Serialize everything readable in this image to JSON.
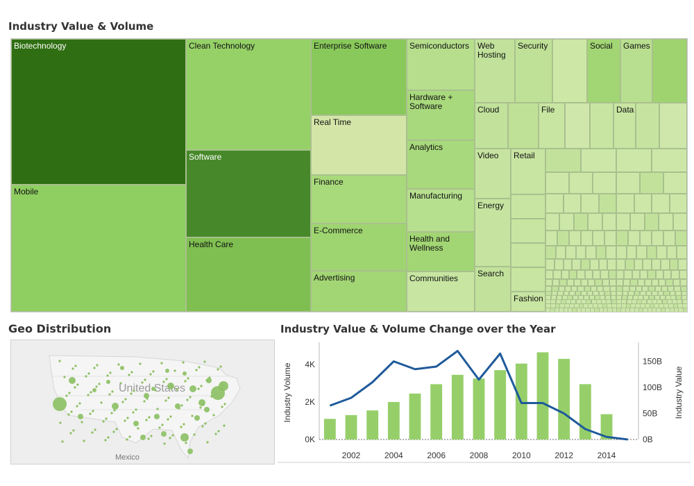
{
  "treemap": {
    "title": "Industry Value & Volume",
    "cells": [
      {
        "label": "Biotechnology",
        "c": "#2f6e12"
      },
      {
        "label": "Mobile",
        "c": "#8fcf61"
      },
      {
        "label": "Clean Technology",
        "c": "#95d167"
      },
      {
        "label": "Software",
        "c": "#47892a"
      },
      {
        "label": "Health Care",
        "c": "#7fbf51"
      },
      {
        "label": "Enterprise Software",
        "c": "#89c95b"
      },
      {
        "label": "Real Time",
        "c": "#d3e6a8"
      },
      {
        "label": "Finance",
        "c": "#a8d97a"
      },
      {
        "label": "E-Commerce",
        "c": "#9fd570"
      },
      {
        "label": "Advertising",
        "c": "#a2d674"
      },
      {
        "label": "Semiconductors",
        "c": "#b6de8c"
      },
      {
        "label": "Hardware + Software",
        "c": "#a8d97c"
      },
      {
        "label": "Analytics",
        "c": "#a8d97c"
      },
      {
        "label": "Manufacturing",
        "c": "#b6df8e"
      },
      {
        "label": "Health and Wellness",
        "c": "#a2d674"
      },
      {
        "label": "Communities",
        "c": "#c8e5a2"
      },
      {
        "label": "Web Hosting",
        "c": "#c2e29c"
      },
      {
        "label": "Security",
        "c": "#bfe197"
      },
      {
        "label": "Social",
        "c": "#a2d674"
      },
      {
        "label": "Games",
        "c": "#b8df90"
      },
      {
        "label": "Cloud",
        "c": "#c2e29c"
      },
      {
        "label": "File",
        "c": "#c8e5a2"
      },
      {
        "label": "Data",
        "c": "#c8e5a2"
      },
      {
        "label": "Video",
        "c": "#c6e4a0"
      },
      {
        "label": "Retail",
        "c": "#c8e5a2"
      },
      {
        "label": "Energy",
        "c": "#c6e4a0"
      },
      {
        "label": "Search",
        "c": "#c2e29c"
      },
      {
        "label": "Fashion",
        "c": "#c8e5a2"
      }
    ]
  },
  "geo": {
    "title": "Geo Distribution",
    "country_label": "United States",
    "mexico_label": "Mexico"
  },
  "chart": {
    "title": "Industry Value & Volume Change over the Year",
    "left_axis_label": "Industry Volume",
    "right_axis_label": "Industry Value",
    "left_ticks": [
      "0K",
      "2K",
      "4K"
    ],
    "right_ticks": [
      "0B",
      "50B",
      "100B",
      "150B"
    ],
    "x_ticks": [
      "2002",
      "2004",
      "2006",
      "2008",
      "2010",
      "2012",
      "2014"
    ]
  },
  "chart_data": {
    "type": "bar",
    "x": [
      2001,
      2002,
      2003,
      2004,
      2005,
      2006,
      2007,
      2008,
      2009,
      2010,
      2011,
      2012,
      2013,
      2014,
      2015
    ],
    "series": [
      {
        "name": "Industry Volume",
        "type": "bar",
        "axis": "left",
        "values": [
          1100,
          1300,
          1550,
          2000,
          2450,
          2950,
          3450,
          3250,
          3700,
          4050,
          4650,
          4300,
          2950,
          1350,
          0
        ]
      },
      {
        "name": "Industry Value",
        "type": "line",
        "axis": "right",
        "values": [
          65,
          80,
          110,
          150,
          135,
          140,
          170,
          115,
          165,
          70,
          70,
          50,
          20,
          5,
          0
        ]
      }
    ],
    "ylim_left": [
      0,
      5000
    ],
    "ylim_right": [
      0,
      180
    ],
    "colors": {
      "bar": "#96cf6a",
      "line": "#1f5a9a"
    }
  }
}
